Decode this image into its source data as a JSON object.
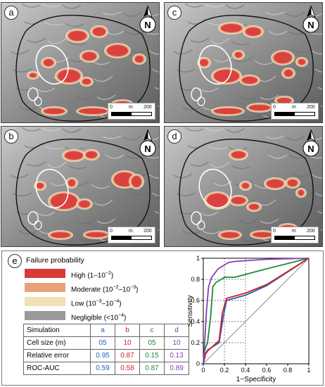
{
  "maps": [
    {
      "letter": "a"
    },
    {
      "letter": "c"
    },
    {
      "letter": "b"
    },
    {
      "letter": "d"
    }
  ],
  "north_label": "N",
  "scale": {
    "start": "0",
    "unit": "m",
    "end": "200"
  },
  "panel_e": {
    "letter": "e",
    "legend_title": "Failure probability",
    "legend": [
      {
        "label": "High (1–10",
        "exp": "−2",
        "tail": ")",
        "color": "#d83a3a"
      },
      {
        "label": "Moderate (10",
        "exp": "−2",
        "mid": "–10",
        "exp2": "−3",
        "tail": ")",
        "color": "#eba07a"
      },
      {
        "label": "Low (10",
        "exp": "−3",
        "mid": "–10",
        "exp2": "−4",
        "tail": ")",
        "color": "#f1dfb8"
      },
      {
        "label": "Negligible (<10",
        "exp": "−4",
        "tail": ")",
        "color": "#9a9a9a"
      }
    ],
    "table": {
      "header": [
        "Simulation",
        "a",
        "b",
        "c",
        "d"
      ],
      "rows": [
        [
          "Cell size (m)",
          "05",
          "10",
          "05",
          "10"
        ],
        [
          "Relative error",
          "0.95",
          "0.87",
          "0.15",
          "0.13"
        ],
        [
          "ROC-AUC",
          "0.59",
          "0.58",
          "0.87",
          "0.89"
        ]
      ],
      "col_colors": [
        "#1f5fbf",
        "#d42020",
        "#1a8a3a",
        "#8a3ab8"
      ]
    }
  },
  "chart_data": {
    "type": "line",
    "xlabel": "1−Specificity",
    "ylabel": "Sensitivity",
    "xlim": [
      0,
      1
    ],
    "ylim": [
      0,
      1
    ],
    "xticks": [
      "0",
      "0.2",
      "0.4",
      "0.6",
      "0.8",
      "1"
    ],
    "yticks": [
      "0",
      "0.2",
      "0.4",
      "0.6",
      "0.8",
      "1"
    ],
    "grid": "dashed at 0.2 and 0.4 on x; 0.2–0.8 on y",
    "series": [
      {
        "color": "#1f5fbf",
        "x": [
          0,
          0.01,
          0.02,
          0.04,
          0.15,
          0.19,
          0.22,
          0.4,
          0.6,
          1.0
        ],
        "y": [
          0,
          0.05,
          0.1,
          0.13,
          0.2,
          0.45,
          0.6,
          0.65,
          0.74,
          1.0
        ]
      },
      {
        "color": "#d42020",
        "x": [
          0,
          0.01,
          0.02,
          0.04,
          0.15,
          0.18,
          0.22,
          0.4,
          0.6,
          1.0
        ],
        "y": [
          0,
          0.04,
          0.09,
          0.12,
          0.22,
          0.48,
          0.62,
          0.67,
          0.75,
          1.0
        ]
      },
      {
        "color": "#1a8a3a",
        "x": [
          0,
          0.01,
          0.04,
          0.07,
          0.09,
          0.12,
          0.17,
          0.2,
          0.3,
          0.6,
          1.0
        ],
        "y": [
          0,
          0.12,
          0.2,
          0.45,
          0.73,
          0.77,
          0.8,
          0.82,
          0.82,
          0.9,
          1.0
        ]
      },
      {
        "color": "#8a3ab8",
        "x": [
          0,
          0.01,
          0.03,
          0.05,
          0.08,
          0.14,
          0.24,
          0.3,
          0.6,
          1.0
        ],
        "y": [
          0,
          0.15,
          0.5,
          0.73,
          0.82,
          0.9,
          0.96,
          0.97,
          0.99,
          1.0
        ]
      },
      {
        "color": "#777777",
        "x": [
          0,
          1
        ],
        "y": [
          0,
          1
        ]
      }
    ]
  }
}
